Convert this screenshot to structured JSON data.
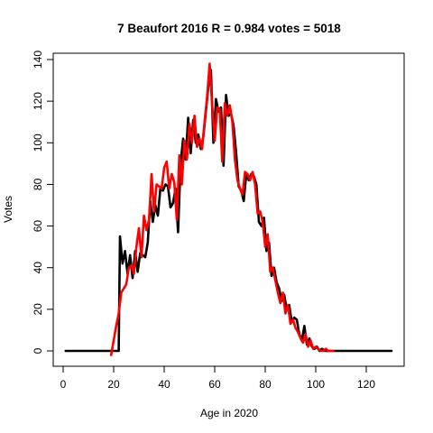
{
  "chart_data": {
    "type": "line",
    "title": "7 Beaufort 2016 R = 0.984 votes = 5018",
    "xlabel": "Age in 2020",
    "ylabel": "Votes",
    "xlim": [
      0,
      130
    ],
    "ylim": [
      0,
      140
    ],
    "xticks": [
      0,
      20,
      40,
      60,
      80,
      100,
      120
    ],
    "yticks": [
      0,
      20,
      40,
      60,
      80,
      100,
      120,
      140
    ],
    "grid": false,
    "legend": "none",
    "series": [
      {
        "color": "#000000",
        "points": [
          [
            1,
            0
          ],
          [
            22,
            0
          ],
          [
            22.5,
            55
          ],
          [
            23.5,
            42
          ],
          [
            24.5,
            48
          ],
          [
            25.5,
            37
          ],
          [
            26.5,
            46
          ],
          [
            27.5,
            35
          ],
          [
            28.5,
            48
          ],
          [
            29.5,
            38
          ],
          [
            30.5,
            47
          ],
          [
            31.5,
            46
          ],
          [
            32.5,
            45
          ],
          [
            33.5,
            52
          ],
          [
            34.5,
            72
          ],
          [
            35.5,
            62
          ],
          [
            36.5,
            70
          ],
          [
            37.5,
            65
          ],
          [
            38.5,
            78
          ],
          [
            39.5,
            77
          ],
          [
            40.5,
            80
          ],
          [
            41.5,
            79
          ],
          [
            42.5,
            69
          ],
          [
            43.5,
            71
          ],
          [
            44.5,
            78
          ],
          [
            45.5,
            57
          ],
          [
            46.5,
            90
          ],
          [
            47.5,
            102
          ],
          [
            48.5,
            92
          ],
          [
            49.5,
            112
          ],
          [
            50.5,
            95
          ],
          [
            51.5,
            111
          ],
          [
            52.5,
            100
          ],
          [
            53.5,
            104
          ],
          [
            54.5,
            97
          ],
          [
            55.5,
            103
          ],
          [
            56.5,
            115
          ],
          [
            57.5,
            127
          ],
          [
            58.5,
            135
          ],
          [
            59.5,
            100
          ],
          [
            60.5,
            121
          ],
          [
            61.5,
            115
          ],
          [
            62.5,
            117
          ],
          [
            63.5,
            89
          ],
          [
            64.5,
            123
          ],
          [
            65.5,
            113
          ],
          [
            66.5,
            114
          ],
          [
            67.5,
            108
          ],
          [
            68.5,
            95
          ],
          [
            69.5,
            79
          ],
          [
            70.5,
            77
          ],
          [
            71.5,
            72
          ],
          [
            72.5,
            85
          ],
          [
            73.5,
            82
          ],
          [
            74.5,
            85
          ],
          [
            75.5,
            84
          ],
          [
            76.5,
            80
          ],
          [
            77.5,
            62
          ],
          [
            78.5,
            60
          ],
          [
            79.5,
            64
          ],
          [
            80.5,
            48
          ],
          [
            81.5,
            52
          ],
          [
            82.5,
            36
          ],
          [
            83.5,
            40
          ],
          [
            84.5,
            33
          ],
          [
            85.5,
            30
          ],
          [
            86.5,
            24
          ],
          [
            87.5,
            27
          ],
          [
            88.5,
            20
          ],
          [
            89.5,
            22
          ],
          [
            90.5,
            14
          ],
          [
            91.5,
            16
          ],
          [
            92.5,
            15
          ],
          [
            93.5,
            8
          ],
          [
            94.5,
            5
          ],
          [
            95.5,
            12
          ],
          [
            96.5,
            3
          ],
          [
            97.5,
            6
          ],
          [
            98.5,
            2
          ],
          [
            99.5,
            1
          ],
          [
            100.5,
            2
          ],
          [
            101.5,
            0
          ],
          [
            102.5,
            1
          ],
          [
            103.5,
            0
          ],
          [
            105,
            0
          ],
          [
            130,
            0
          ]
        ]
      },
      {
        "color": "#ff0000",
        "points": [
          [
            19,
            -2
          ],
          [
            20,
            5
          ],
          [
            21,
            12
          ],
          [
            22,
            18
          ],
          [
            23,
            28
          ],
          [
            24,
            30
          ],
          [
            25,
            32
          ],
          [
            26,
            40
          ],
          [
            27,
            41
          ],
          [
            28,
            37
          ],
          [
            29,
            50
          ],
          [
            30,
            59
          ],
          [
            31,
            45
          ],
          [
            32,
            65
          ],
          [
            33,
            58
          ],
          [
            34,
            63
          ],
          [
            35,
            85
          ],
          [
            36,
            67
          ],
          [
            37,
            80
          ],
          [
            38,
            79
          ],
          [
            39,
            78
          ],
          [
            40,
            88
          ],
          [
            41,
            91
          ],
          [
            42,
            78
          ],
          [
            43,
            85
          ],
          [
            44,
            81
          ],
          [
            45,
            63
          ],
          [
            46,
            94
          ],
          [
            47,
            80
          ],
          [
            48,
            101
          ],
          [
            49,
            92
          ],
          [
            50,
            109
          ],
          [
            51,
            100
          ],
          [
            52,
            113
          ],
          [
            53,
            98
          ],
          [
            54,
            102
          ],
          [
            55,
            97
          ],
          [
            56,
            110
          ],
          [
            57,
            122
          ],
          [
            58,
            138
          ],
          [
            59,
            118
          ],
          [
            60,
            101
          ],
          [
            61,
            117
          ],
          [
            62,
            116
          ],
          [
            63,
            91
          ],
          [
            64,
            119
          ],
          [
            65,
            113
          ],
          [
            66,
            118
          ],
          [
            67,
            110
          ],
          [
            68,
            92
          ],
          [
            69,
            82
          ],
          [
            70,
            78
          ],
          [
            71,
            75
          ],
          [
            72,
            86
          ],
          [
            73,
            85
          ],
          [
            74,
            82
          ],
          [
            75,
            86
          ],
          [
            76,
            80
          ],
          [
            77,
            66
          ],
          [
            78,
            67
          ],
          [
            79,
            62
          ],
          [
            80,
            50
          ],
          [
            81,
            56
          ],
          [
            82,
            38
          ],
          [
            83,
            40
          ],
          [
            84,
            34
          ],
          [
            85,
            28
          ],
          [
            86,
            23
          ],
          [
            87,
            28
          ],
          [
            88,
            18
          ],
          [
            89,
            22
          ],
          [
            90,
            13
          ],
          [
            91,
            15
          ],
          [
            92,
            11
          ],
          [
            93,
            9
          ],
          [
            94,
            6
          ],
          [
            95,
            4
          ],
          [
            96,
            8
          ],
          [
            97,
            2
          ],
          [
            98,
            5
          ],
          [
            99,
            1
          ],
          [
            100,
            2
          ],
          [
            101,
            1
          ],
          [
            102,
            0
          ],
          [
            103,
            0
          ],
          [
            104,
            1
          ],
          [
            105,
            0
          ],
          [
            107,
            0
          ]
        ]
      }
    ]
  }
}
